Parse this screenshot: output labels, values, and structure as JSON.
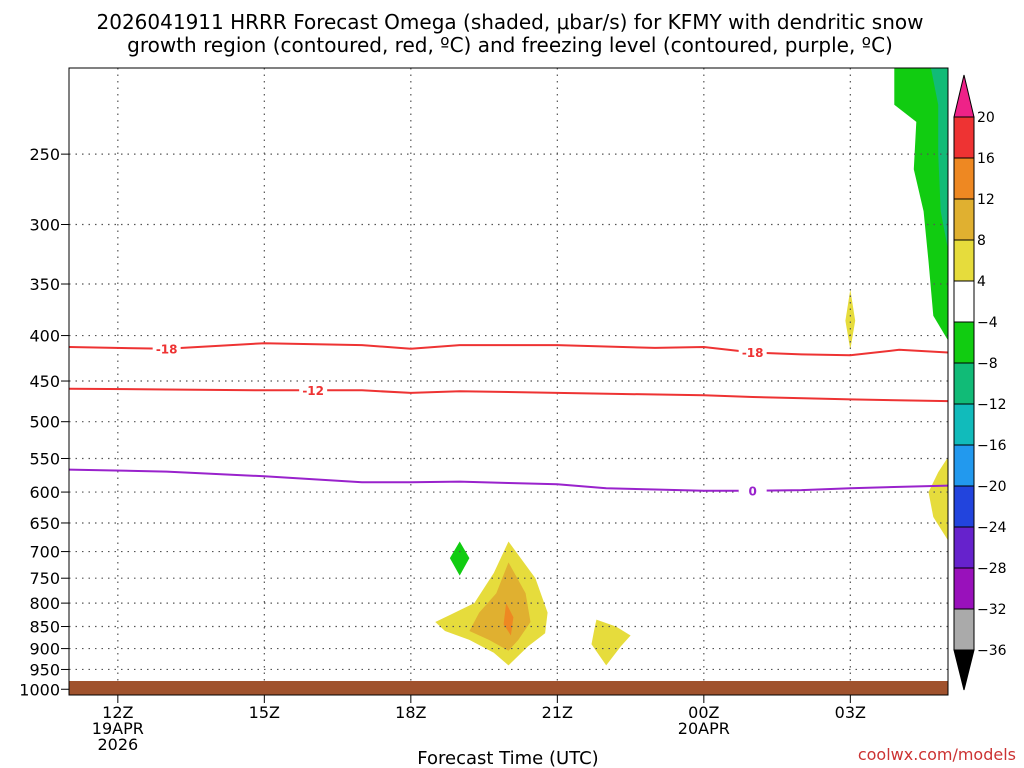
{
  "chart_data": {
    "type": "time-height",
    "title_line1": "2026041911 HRRR Forecast Omega (shaded, μbar/s) for KFMY with dendritic snow",
    "title_line2": "growth region (contoured, red, ºC) and freezing level (contoured, purple, ºC)",
    "xlabel": "Forecast Time (UTC)",
    "credit": "coolwx.com/models",
    "x_range_hours": [
      11,
      29
    ],
    "x_ticks": [
      {
        "hour": 12,
        "lines": [
          "12Z",
          "19APR",
          "2026"
        ]
      },
      {
        "hour": 15,
        "lines": [
          "15Z"
        ]
      },
      {
        "hour": 18,
        "lines": [
          "18Z"
        ]
      },
      {
        "hour": 21,
        "lines": [
          "21Z"
        ]
      },
      {
        "hour": 24,
        "lines": [
          "00Z",
          "20APR"
        ]
      },
      {
        "hour": 27,
        "lines": [
          "03Z"
        ]
      }
    ],
    "y_range_hpa": [
      1015,
      200
    ],
    "y_ticks": [
      250,
      300,
      350,
      400,
      450,
      500,
      550,
      600,
      650,
      700,
      750,
      800,
      850,
      900,
      950,
      1000
    ],
    "contours": [
      {
        "name": "dgz-minus-18",
        "label": "-18",
        "color": "#ee3333",
        "label_positions": [
          13.0,
          25.0
        ],
        "points": [
          [
            11,
            412
          ],
          [
            13,
            414
          ],
          [
            14,
            411
          ],
          [
            15,
            408
          ],
          [
            17,
            410
          ],
          [
            18,
            414
          ],
          [
            19,
            410
          ],
          [
            21,
            410
          ],
          [
            23,
            413
          ],
          [
            24,
            412
          ],
          [
            25,
            418
          ],
          [
            26,
            420
          ],
          [
            27,
            421
          ],
          [
            28,
            415
          ],
          [
            29,
            418
          ]
        ]
      },
      {
        "name": "dgz-minus-12",
        "label": "-12",
        "color": "#ee3333",
        "label_positions": [
          16.0
        ],
        "points": [
          [
            11,
            459
          ],
          [
            13,
            460
          ],
          [
            15,
            461
          ],
          [
            17,
            461
          ],
          [
            18,
            464
          ],
          [
            19,
            462
          ],
          [
            21,
            464
          ],
          [
            24,
            467
          ],
          [
            25,
            469
          ],
          [
            27,
            472
          ],
          [
            29,
            474
          ]
        ]
      },
      {
        "name": "freezing-level",
        "label": "0",
        "color": "#9922cc",
        "label_positions": [
          25.0
        ],
        "points": [
          [
            11,
            566
          ],
          [
            13,
            569
          ],
          [
            15,
            576
          ],
          [
            17,
            585
          ],
          [
            18,
            585
          ],
          [
            19,
            584
          ],
          [
            20,
            586
          ],
          [
            21,
            588
          ],
          [
            22,
            594
          ],
          [
            23,
            596
          ],
          [
            24,
            598
          ],
          [
            25,
            598
          ],
          [
            26,
            597
          ],
          [
            27,
            594
          ],
          [
            29,
            590
          ]
        ]
      }
    ],
    "shaded_regions": [
      {
        "name": "omega-minus-4-to-minus-8-upper",
        "omega_range": "-4 to -8",
        "color": "#11cc11",
        "points": [
          [
            27.9,
            200
          ],
          [
            29,
            200
          ],
          [
            29,
            405
          ],
          [
            28.7,
            380
          ],
          [
            28.6,
            330
          ],
          [
            28.5,
            290
          ],
          [
            28.3,
            260
          ],
          [
            28.35,
            230
          ],
          [
            27.9,
            220
          ]
        ]
      },
      {
        "name": "omega-minus-8-to-minus-12-upper",
        "omega_range": "-8 to -12",
        "color": "#11bb77",
        "points": [
          [
            28.65,
            200
          ],
          [
            29,
            200
          ],
          [
            29,
            320
          ],
          [
            28.85,
            290
          ],
          [
            28.8,
            250
          ],
          [
            28.8,
            220
          ]
        ]
      },
      {
        "name": "omega-4-to-8-upper-cell",
        "omega_range": "4 to 8",
        "color": "#e6dc3c",
        "points": [
          [
            27,
            355
          ],
          [
            27.1,
            385
          ],
          [
            27,
            415
          ],
          [
            26.9,
            385
          ]
        ]
      },
      {
        "name": "omega-4-to-8-right-edge",
        "omega_range": "4 to 8",
        "color": "#e6dc3c",
        "points": [
          [
            29,
            548
          ],
          [
            29,
            680
          ],
          [
            28.7,
            640
          ],
          [
            28.6,
            600
          ],
          [
            28.8,
            570
          ]
        ]
      },
      {
        "name": "omega-minus-4-to-minus-8-lower-cell",
        "omega_range": "-4 to -8",
        "color": "#11cc11",
        "points": [
          [
            19.0,
            682
          ],
          [
            19.2,
            712
          ],
          [
            19.0,
            745
          ],
          [
            18.8,
            712
          ]
        ]
      },
      {
        "name": "omega-4-to-8-main-cell",
        "omega_range": "4 to 8",
        "color": "#e6dc3c",
        "points": [
          [
            20.0,
            682
          ],
          [
            20.55,
            750
          ],
          [
            20.8,
            820
          ],
          [
            20.75,
            865
          ],
          [
            20.4,
            895
          ],
          [
            20.0,
            940
          ],
          [
            19.7,
            910
          ],
          [
            19.2,
            880
          ],
          [
            18.7,
            860
          ],
          [
            18.5,
            840
          ],
          [
            18.8,
            825
          ],
          [
            19.3,
            800
          ],
          [
            19.7,
            740
          ]
        ]
      },
      {
        "name": "omega-8-to-12-main-cell",
        "omega_range": "8 to 12",
        "color": "#e0b030",
        "points": [
          [
            20.0,
            720
          ],
          [
            20.35,
            780
          ],
          [
            20.45,
            840
          ],
          [
            20.2,
            880
          ],
          [
            20.0,
            905
          ],
          [
            19.6,
            880
          ],
          [
            19.2,
            860
          ],
          [
            19.4,
            820
          ],
          [
            19.75,
            780
          ]
        ]
      },
      {
        "name": "omega-12-to-16-main-cell",
        "omega_range": "12 to 16",
        "color": "#ee8822",
        "points": [
          [
            19.95,
            800
          ],
          [
            20.1,
            830
          ],
          [
            20.05,
            870
          ],
          [
            19.9,
            845
          ]
        ]
      },
      {
        "name": "omega-4-to-8-small-cell",
        "omega_range": "4 to 8",
        "color": "#e6dc3c",
        "points": [
          [
            21.8,
            835
          ],
          [
            22.2,
            850
          ],
          [
            22.5,
            870
          ],
          [
            22.3,
            895
          ],
          [
            22.0,
            940
          ],
          [
            21.7,
            890
          ],
          [
            21.75,
            860
          ]
        ]
      }
    ],
    "colorbar": {
      "labels": [
        "20",
        "16",
        "12",
        "8",
        "4",
        "−4",
        "−8",
        "−12",
        "−16",
        "−20",
        "−24",
        "−28",
        "−32",
        "−36"
      ],
      "colors": [
        "#ee2288",
        "#ee3333",
        "#ee8822",
        "#e0b030",
        "#e6dc3c",
        "#ffffff",
        "#11cc11",
        "#11bb77",
        "#11bbbb",
        "#2299ee",
        "#2244dd",
        "#6622cc",
        "#9911bb",
        "#aaaaaa",
        "#000000"
      ]
    },
    "ground_color": "#a0522d"
  }
}
